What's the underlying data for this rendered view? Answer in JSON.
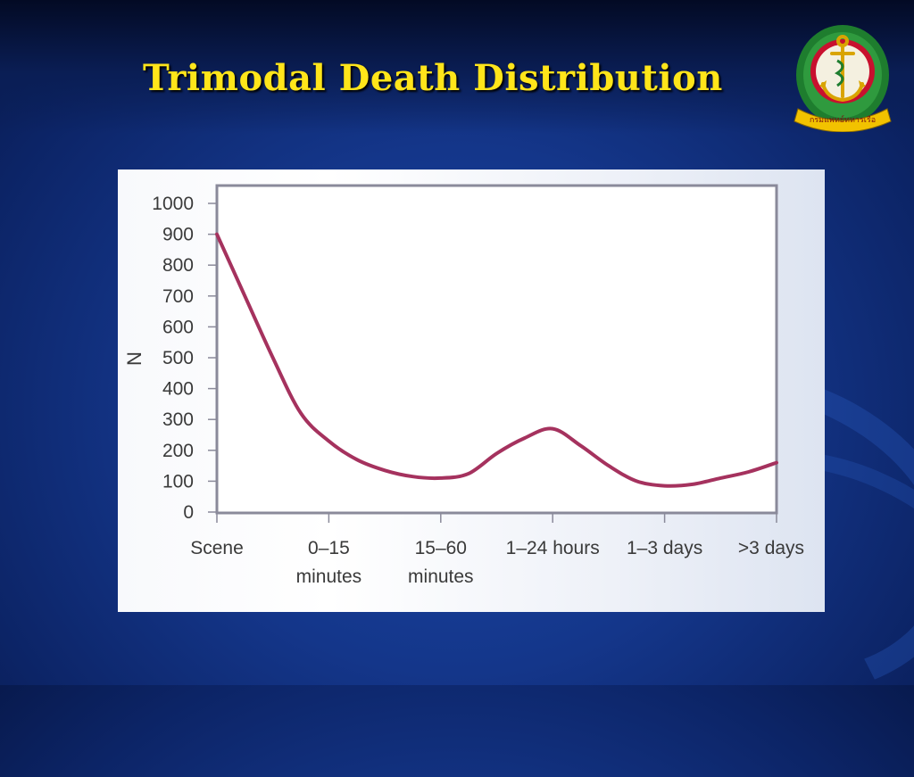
{
  "slide": {
    "title": "Trimodal Death Distribution"
  },
  "emblem": {
    "icon": "naval-anchor-emblem-icon",
    "banner_text": "กรมแพทย์ทหารเรือ",
    "colors": {
      "wreath": "#1e7d2e",
      "ring": "#c8102e",
      "anchor": "#f2c200"
    }
  },
  "chart_data": {
    "type": "line",
    "ylabel": "N",
    "xlabel": "",
    "ylim": [
      0,
      1000
    ],
    "yticks": [
      0,
      100,
      200,
      300,
      400,
      500,
      600,
      700,
      800,
      900,
      1000
    ],
    "categories": [
      [
        "Scene"
      ],
      [
        "0–15",
        "minutes"
      ],
      [
        "15–60",
        "minutes"
      ],
      [
        "1–24 hours"
      ],
      [
        "1–3 days"
      ],
      [
        ">3 days"
      ]
    ],
    "curve": {
      "x": [
        0,
        0.25,
        0.5,
        0.75,
        1.0,
        1.25,
        1.5,
        1.75,
        2.0,
        2.25,
        2.5,
        2.75,
        3.0,
        3.25,
        3.5,
        3.75,
        4.0,
        4.25,
        4.5,
        4.75,
        5.0
      ],
      "y": [
        900,
        700,
        500,
        320,
        230,
        170,
        135,
        115,
        110,
        125,
        190,
        240,
        270,
        215,
        150,
        100,
        85,
        90,
        110,
        130,
        160
      ]
    },
    "grid": false,
    "legend": "none",
    "colors": {
      "line": "#a5325e",
      "frame": "#8a8a9a",
      "background": "#ffffff"
    }
  }
}
